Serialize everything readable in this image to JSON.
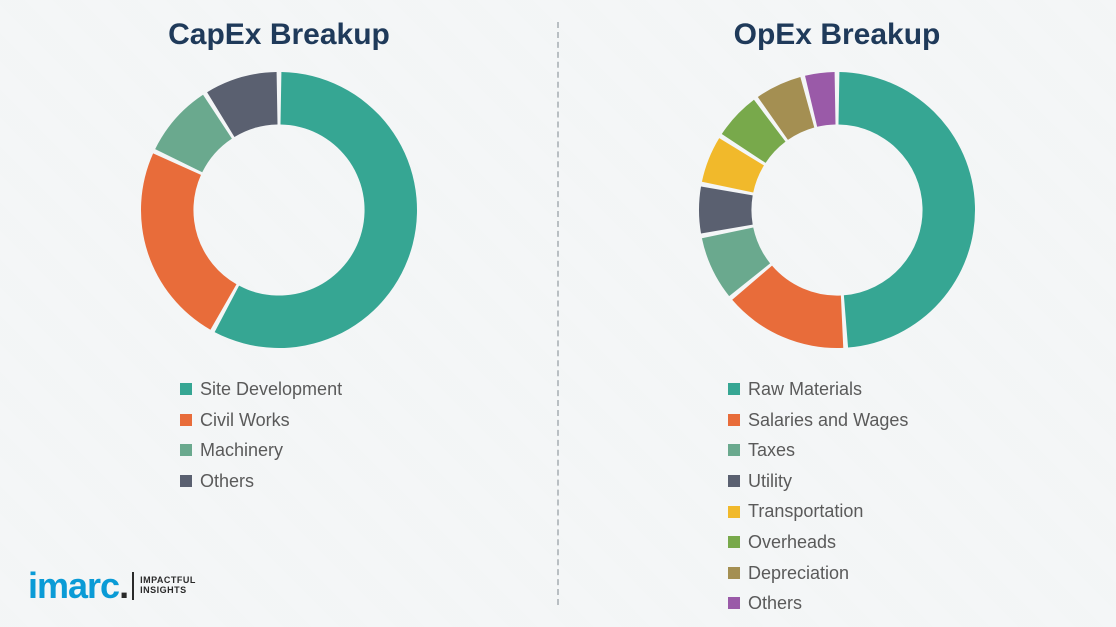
{
  "background_color": "#f4f6f7",
  "divider_color": "#b9bfc3",
  "title_color": "#1f3a5a",
  "legend_text_color": "#5a5a5a",
  "logo": {
    "main": "imarc",
    "main_color": "#0a9bd6",
    "dot_color": "#2a2a2a",
    "tagline_line1": "IMPACTFUL",
    "tagline_line2": "INSIGHTS"
  },
  "charts": {
    "capex": {
      "type": "donut",
      "title": "CapEx Breakup",
      "title_fontsize": 30,
      "inner_radius_ratio": 0.62,
      "start_angle_deg": -90,
      "gap_deg": 2,
      "series": [
        {
          "label": "Site Development",
          "value": 58,
          "color": "#36a693"
        },
        {
          "label": "Civil Works",
          "value": 24,
          "color": "#e86c3a"
        },
        {
          "label": "Machinery",
          "value": 9,
          "color": "#6aa98e"
        },
        {
          "label": "Others",
          "value": 9,
          "color": "#5a6070"
        }
      ]
    },
    "opex": {
      "type": "donut",
      "title": "OpEx Breakup",
      "title_fontsize": 30,
      "inner_radius_ratio": 0.62,
      "start_angle_deg": -90,
      "gap_deg": 2,
      "series": [
        {
          "label": "Raw Materials",
          "value": 49,
          "color": "#36a693"
        },
        {
          "label": "Salaries and Wages",
          "value": 15,
          "color": "#e86c3a"
        },
        {
          "label": "Taxes",
          "value": 8,
          "color": "#6aa98e"
        },
        {
          "label": "Utility",
          "value": 6,
          "color": "#5a6070"
        },
        {
          "label": "Transportation",
          "value": 6,
          "color": "#f1b92b"
        },
        {
          "label": "Overheads",
          "value": 6,
          "color": "#78a94b"
        },
        {
          "label": "Depreciation",
          "value": 6,
          "color": "#a48f52"
        },
        {
          "label": "Others",
          "value": 4,
          "color": "#9a5aa8"
        }
      ]
    }
  }
}
